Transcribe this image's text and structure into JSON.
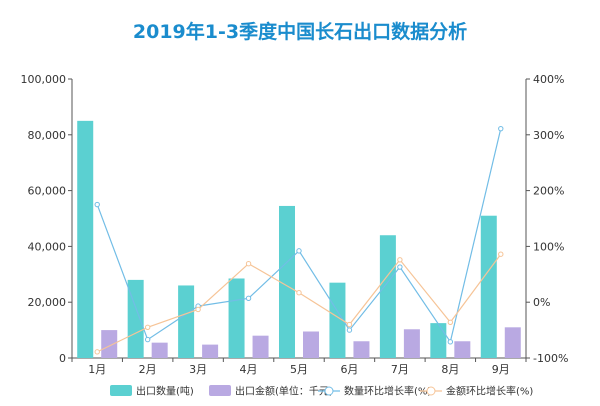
{
  "chart_data": {
    "type": "bar",
    "title": "2019年1-3季度中国长石出口数据分析",
    "categories": [
      "1月",
      "2月",
      "3月",
      "4月",
      "5月",
      "6月",
      "7月",
      "8月",
      "9月"
    ],
    "series": [
      {
        "name": "出口数量(吨)",
        "type": "bar",
        "axis": "left",
        "color": "#5bd0d1",
        "values": [
          85000,
          28000,
          26000,
          28500,
          54500,
          27000,
          44000,
          12500,
          51000
        ]
      },
      {
        "name": "出口金额(单位：千元)",
        "type": "bar",
        "axis": "left",
        "color": "#b9a9e2",
        "values": [
          10000,
          5500,
          4800,
          8000,
          9500,
          6000,
          10300,
          6000,
          11000
        ]
      },
      {
        "name": "数量环比增长率(%)",
        "type": "line",
        "axis": "right",
        "color": "#72bde6",
        "values": [
          175,
          -67,
          -7,
          7,
          92,
          -50,
          63,
          -71,
          311
        ]
      },
      {
        "name": "金额环比增长率(%)",
        "type": "line",
        "axis": "right",
        "color": "#f6c497",
        "values": [
          -89,
          -45,
          -13,
          69,
          17,
          -40,
          76,
          -36,
          86
        ]
      }
    ],
    "left_axis": {
      "min": 0,
      "max": 100000,
      "step": 20000,
      "ticks": [
        "0",
        "20,000",
        "40,000",
        "60,000",
        "80,000",
        "100,000"
      ]
    },
    "right_axis": {
      "min": -100,
      "max": 400,
      "step": 100,
      "ticks": [
        "-100%",
        "0%",
        "100%",
        "200%",
        "300%",
        "400%"
      ]
    },
    "grid": false,
    "legend_position": "bottom",
    "title_color": "#1a8ccd"
  }
}
